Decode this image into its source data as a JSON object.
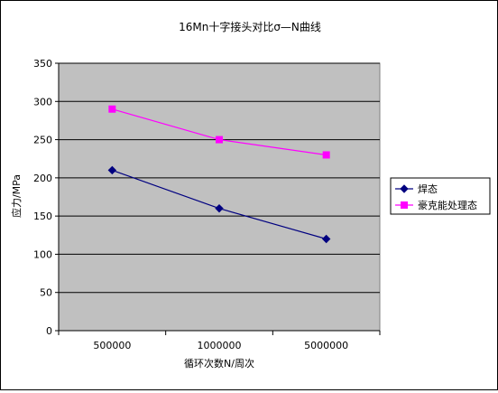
{
  "chart_data": {
    "type": "line",
    "title": "16Mn十字接头对比σ—N曲线",
    "xlabel": "循环次数N/周次",
    "ylabel": "应力/MPa",
    "categories": [
      "500000",
      "1000000",
      "5000000"
    ],
    "ylim": [
      0,
      350
    ],
    "yticks": [
      "0",
      "50",
      "100",
      "150",
      "200",
      "250",
      "300",
      "350"
    ],
    "grid": true,
    "plot_background": "#c0c0c0",
    "legend_position": "right",
    "series": [
      {
        "name": "焊态",
        "values": [
          210,
          160,
          120
        ],
        "color": "#000080",
        "marker": "diamond"
      },
      {
        "name": "豪克能处理态",
        "values": [
          290,
          250,
          230
        ],
        "color": "#ff00ff",
        "marker": "square"
      }
    ]
  }
}
